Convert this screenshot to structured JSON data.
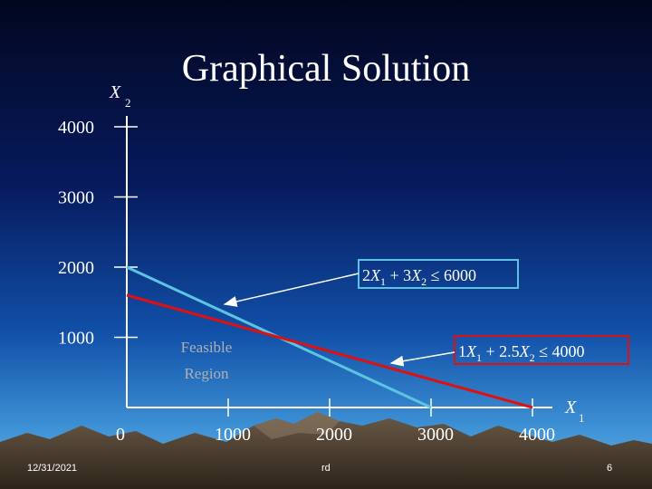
{
  "slide": {
    "title": "Graphical Solution",
    "footer_date": "12/31/2021",
    "footer_center": "rd",
    "page_number": "6"
  },
  "colors": {
    "constraint_1": "#5cc4e0",
    "constraint_2": "#e01010",
    "axis": "#ffffff",
    "text": "#ffffff",
    "feasible_label": "#b0b0b0"
  },
  "chart_data": {
    "type": "line",
    "xlabel": "X1",
    "ylabel": "X2",
    "xlim": [
      0,
      4000
    ],
    "ylim": [
      0,
      4000
    ],
    "x_ticks": [
      "0",
      "1000",
      "2000",
      "3000",
      "4000"
    ],
    "y_ticks": [
      "1000",
      "2000",
      "3000",
      "4000"
    ],
    "series": [
      {
        "name": "2X1 + 3X2 ≤ 6000",
        "x": [
          0,
          3000
        ],
        "y": [
          2000,
          0
        ]
      },
      {
        "name": "1X1 + 2.5X2 ≤ 4000",
        "x": [
          0,
          4000
        ],
        "y": [
          1600,
          0
        ]
      }
    ],
    "annotations": [
      "Feasible",
      "Region"
    ]
  }
}
